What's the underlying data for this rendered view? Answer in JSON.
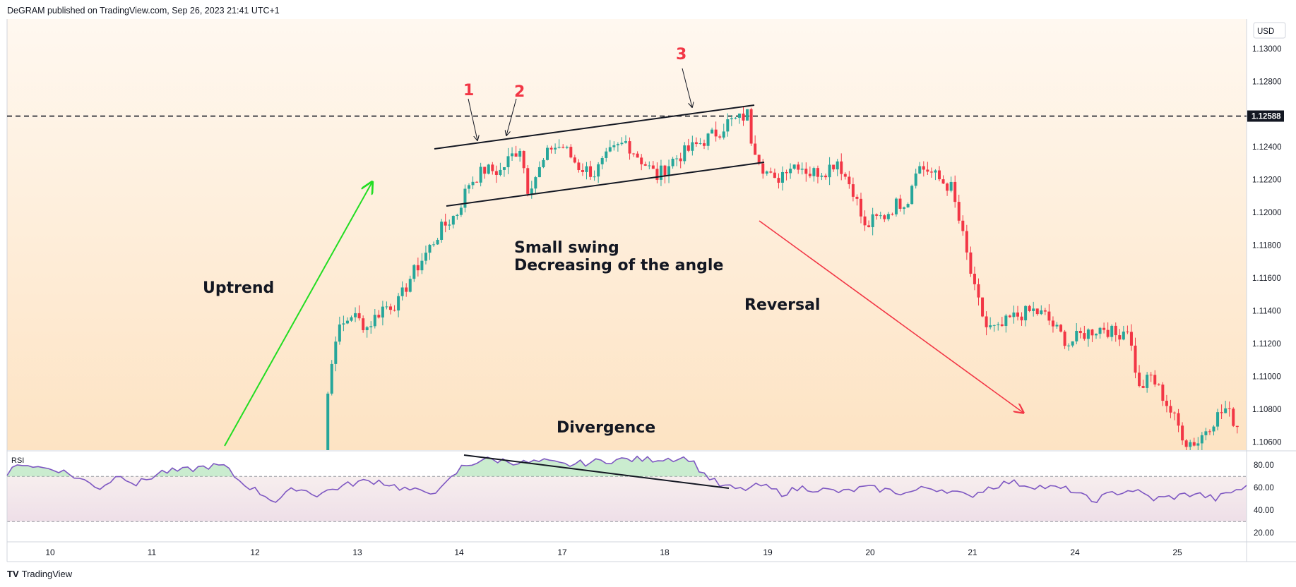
{
  "header": {
    "text": "DeGRAM published on TradingView.com, Sep 26, 2023 21:41 UTC+1"
  },
  "footer": {
    "logo": "TV",
    "brand": "TradingView"
  },
  "colors": {
    "up": "#26a69a",
    "down": "#f23645",
    "rsi_line": "#7e57c2",
    "arrow_up": "#22dd22",
    "arrow_down": "#f23645",
    "number_red": "#f23645",
    "bg_top": "#fff8f0",
    "bg_bottom": "#fde3c3"
  },
  "axis": {
    "currency": "USD",
    "current_price": "1.12588"
  },
  "rsi_label": "RSI",
  "annotations": {
    "uptrend": "Uptrend",
    "small_swing": "Small swing",
    "decreasing": "Decreasing of the angle",
    "reversal": "Reversal",
    "divergence": "Divergence",
    "n1": "1",
    "n2": "2",
    "n3": "3"
  },
  "chart_data": [
    {
      "type": "candlestick",
      "ylim": [
        1.1055,
        1.1318
      ],
      "y_ticks": [
        "1.13000",
        "1.12800",
        "1.12600",
        "1.12400",
        "1.12200",
        "1.12000",
        "1.11800",
        "1.11600",
        "1.11400",
        "1.11200",
        "1.11000",
        "1.10800",
        "1.10600"
      ],
      "y_tick_values": [
        1.13,
        1.128,
        1.126,
        1.124,
        1.122,
        1.12,
        1.118,
        1.116,
        1.114,
        1.112,
        1.11,
        1.108,
        1.106
      ],
      "x_tick_labels": [
        "10",
        "11",
        "12",
        "13",
        "14",
        "17",
        "18",
        "19",
        "20",
        "21",
        "24",
        "25"
      ],
      "horizontal_level": 1.12588,
      "series": [
        {
          "anchors_close": [
            [
              0,
              1.1
            ],
            [
              3,
              1.1052
            ],
            [
              4,
              1.109
            ],
            [
              6,
              1.1125
            ],
            [
              10,
              1.1138
            ],
            [
              14,
              1.113
            ],
            [
              18,
              1.1142
            ],
            [
              22,
              1.1145
            ],
            [
              25,
              1.116
            ],
            [
              29,
              1.1175
            ],
            [
              33,
              1.119
            ],
            [
              37,
              1.12
            ],
            [
              40,
              1.1218
            ],
            [
              44,
              1.1226
            ],
            [
              48,
              1.1225
            ],
            [
              50,
              1.1232
            ],
            [
              53,
              1.124
            ],
            [
              55,
              1.1215
            ],
            [
              58,
              1.1226
            ],
            [
              61,
              1.124
            ],
            [
              64,
              1.124
            ],
            [
              68,
              1.1228
            ],
            [
              72,
              1.1224
            ],
            [
              76,
              1.1236
            ],
            [
              80,
              1.1243
            ],
            [
              84,
              1.1232
            ],
            [
              88,
              1.1222
            ],
            [
              92,
              1.1232
            ],
            [
              96,
              1.1238
            ],
            [
              100,
              1.1244
            ],
            [
              104,
              1.125
            ],
            [
              106,
              1.1255
            ],
            [
              109,
              1.1257
            ],
            [
              111,
              1.126
            ],
            [
              112,
              1.1245
            ],
            [
              115,
              1.1228
            ],
            [
              118,
              1.1218
            ],
            [
              121,
              1.1228
            ],
            [
              124,
              1.123
            ],
            [
              127,
              1.1224
            ],
            [
              131,
              1.1226
            ],
            [
              134,
              1.1232
            ],
            [
              136,
              1.1222
            ],
            [
              138,
              1.1214
            ],
            [
              141,
              1.119
            ],
            [
              143,
              1.1195
            ],
            [
              146,
              1.1198
            ],
            [
              149,
              1.1205
            ],
            [
              152,
              1.1208
            ],
            [
              154,
              1.1228
            ],
            [
              157,
              1.1226
            ],
            [
              160,
              1.122
            ],
            [
              163,
              1.1215
            ],
            [
              166,
              1.1185
            ],
            [
              169,
              1.1152
            ],
            [
              172,
              1.113
            ],
            [
              175,
              1.1128
            ],
            [
              178,
              1.1135
            ],
            [
              181,
              1.1138
            ],
            [
              184,
              1.114
            ],
            [
              187,
              1.1137
            ],
            [
              190,
              1.1128
            ],
            [
              193,
              1.112
            ],
            [
              196,
              1.1125
            ],
            [
              199,
              1.1128
            ],
            [
              202,
              1.113
            ],
            [
              205,
              1.1125
            ],
            [
              208,
              1.113
            ],
            [
              211,
              1.1092
            ],
            [
              214,
              1.11
            ],
            [
              217,
              1.1088
            ],
            [
              220,
              1.1074
            ],
            [
              223,
              1.106
            ],
            [
              226,
              1.106
            ],
            [
              228,
              1.1068
            ],
            [
              231,
              1.1076
            ],
            [
              233,
              1.108
            ],
            [
              236,
              1.107
            ],
            [
              238,
              1.106
            ],
            [
              240,
              1.1045
            ]
          ]
        }
      ]
    },
    {
      "type": "line",
      "name": "RSI",
      "ylim": [
        12,
        92
      ],
      "y_ticks": [
        "80.00",
        "60.00",
        "40.00",
        "20.00"
      ],
      "y_tick_values": [
        80,
        60,
        40,
        20
      ],
      "bands": [
        30,
        70
      ],
      "series": [
        {
          "anchors": [
            [
              0,
              72
            ],
            [
              3,
              82
            ],
            [
              6,
              78
            ],
            [
              10,
              76
            ],
            [
              14,
              68
            ],
            [
              18,
              60
            ],
            [
              22,
              72
            ],
            [
              25,
              63
            ],
            [
              30,
              74
            ],
            [
              34,
              75
            ],
            [
              39,
              79
            ],
            [
              42,
              79
            ],
            [
              45,
              66
            ],
            [
              48,
              58
            ],
            [
              52,
              48
            ],
            [
              56,
              60
            ],
            [
              60,
              54
            ],
            [
              64,
              60
            ],
            [
              68,
              65
            ],
            [
              72,
              66
            ],
            [
              76,
              60
            ],
            [
              80,
              56
            ],
            [
              84,
              58
            ],
            [
              88,
              78
            ],
            [
              92,
              85
            ],
            [
              96,
              84
            ],
            [
              100,
              82
            ],
            [
              104,
              83
            ],
            [
              108,
              80
            ],
            [
              112,
              82
            ],
            [
              116,
              84
            ],
            [
              120,
              85
            ],
            [
              124,
              85
            ],
            [
              128,
              86
            ],
            [
              132,
              86
            ],
            [
              135,
              72
            ],
            [
              138,
              62
            ],
            [
              142,
              58
            ],
            [
              146,
              62
            ],
            [
              150,
              55
            ],
            [
              154,
              60
            ],
            [
              158,
              58
            ],
            [
              162,
              56
            ],
            [
              166,
              60
            ],
            [
              170,
              58
            ],
            [
              174,
              55
            ],
            [
              178,
              60
            ],
            [
              182,
              58
            ],
            [
              186,
              52
            ],
            [
              190,
              60
            ],
            [
              194,
              65
            ],
            [
              198,
              62
            ],
            [
              202,
              60
            ],
            [
              206,
              58
            ],
            [
              210,
              48
            ],
            [
              214,
              55
            ],
            [
              218,
              58
            ],
            [
              222,
              50
            ],
            [
              226,
              52
            ],
            [
              230,
              55
            ],
            [
              234,
              50
            ],
            [
              238,
              58
            ],
            [
              240,
              60
            ]
          ]
        }
      ],
      "divergence_line": true
    }
  ]
}
